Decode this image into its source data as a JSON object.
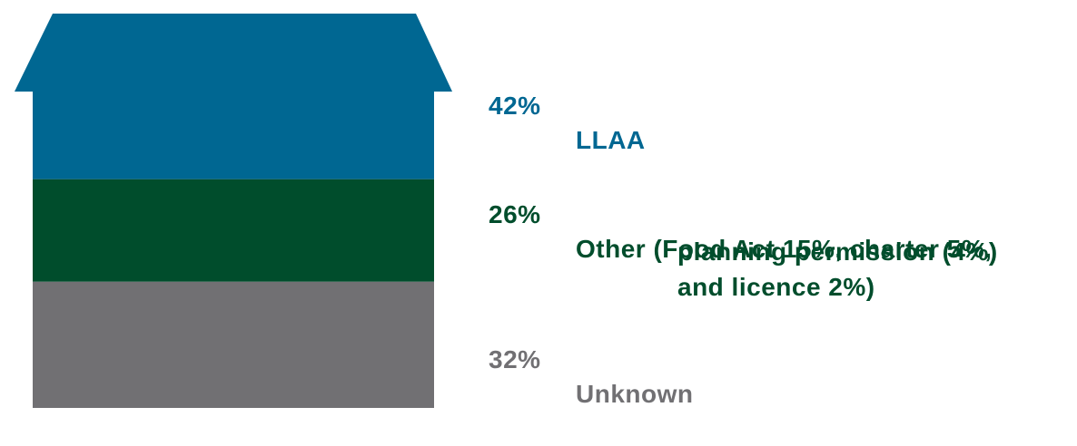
{
  "chart_data": {
    "type": "bar",
    "subtype": "stacked-house",
    "categories": [
      "LLAA",
      "Other",
      "Unknown"
    ],
    "values": [
      42,
      26,
      32
    ],
    "unit": "%",
    "title": "",
    "xlabel": "",
    "ylabel": "",
    "ylim": [
      0,
      100
    ],
    "grid": false,
    "legend_position": "right",
    "colors": [
      "#006792",
      "#004d2c",
      "#717073"
    ],
    "legend": [
      {
        "percent_label": "42%",
        "label_lines": [
          "LLAA"
        ],
        "color": "#006792"
      },
      {
        "percent_label": "26%",
        "label_lines": [
          "Other (Food Act 15%, charter 5%,",
          "planning permission (4%)",
          "and licence 2%)"
        ],
        "color": "#004d2c"
      },
      {
        "percent_label": "32%",
        "label_lines": [
          "Unknown"
        ],
        "color": "#717073"
      }
    ]
  }
}
